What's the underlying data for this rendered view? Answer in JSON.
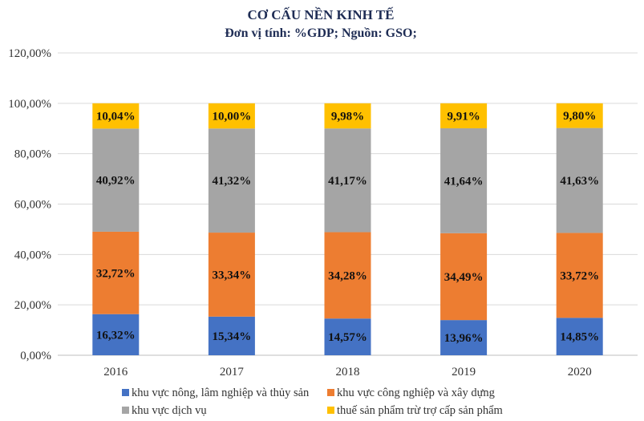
{
  "chart_data": {
    "type": "bar",
    "stacked": true,
    "title": "CƠ CẤU NỀN KINH TẾ",
    "subtitle": "Đơn vị tính: %GDP; Nguồn: GSO;",
    "categories": [
      "2016",
      "2017",
      "2018",
      "2019",
      "2020"
    ],
    "ylim": [
      0,
      120
    ],
    "yticks": [
      "0,00%",
      "20,00%",
      "40,00%",
      "60,00%",
      "80,00%",
      "100,00%",
      "120,00%"
    ],
    "grid": true,
    "legend_position": "bottom",
    "series": [
      {
        "name": "khu vực nông, lâm nghiệp và thủy sản",
        "color": "#4472c4",
        "values": [
          16.32,
          15.34,
          14.57,
          13.96,
          14.85
        ],
        "labels": [
          "16,32%",
          "15,34%",
          "14,57%",
          "13,96%",
          "14,85%"
        ]
      },
      {
        "name": "khu vực công nghiệp và xây dựng",
        "color": "#ed7d31",
        "values": [
          32.72,
          33.34,
          34.28,
          34.49,
          33.72
        ],
        "labels": [
          "32,72%",
          "33,34%",
          "34,28%",
          "34,49%",
          "33,72%"
        ]
      },
      {
        "name": "khu vực dịch vụ",
        "color": "#a5a5a5",
        "values": [
          40.92,
          41.32,
          41.17,
          41.64,
          41.63
        ],
        "labels": [
          "40,92%",
          "41,32%",
          "41,17%",
          "41,64%",
          "41,63%"
        ]
      },
      {
        "name": "thuế sản phẩm trừ trợ cấp sản phẩm",
        "color": "#ffc000",
        "values": [
          10.04,
          10.0,
          9.98,
          9.91,
          9.8
        ],
        "labels": [
          "10,04%",
          "10,00%",
          "9,98%",
          "9,91%",
          "9,80%"
        ]
      }
    ]
  }
}
